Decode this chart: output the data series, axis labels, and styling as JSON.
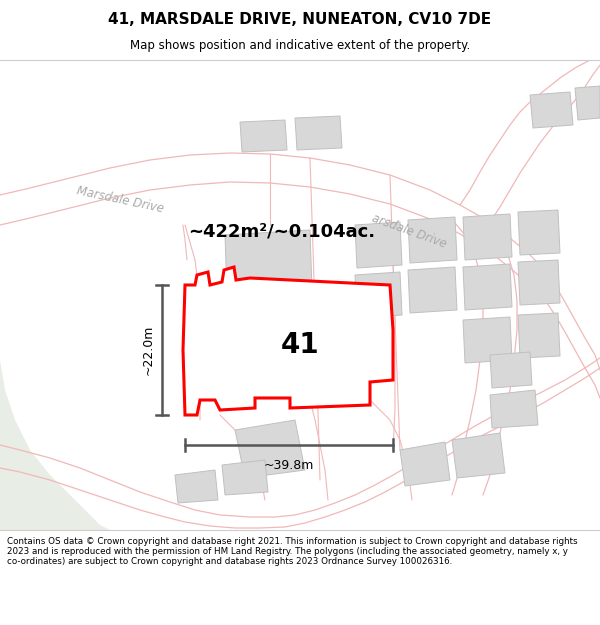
{
  "title": "41, MARSDALE DRIVE, NUNEATON, CV10 7DE",
  "subtitle": "Map shows position and indicative extent of the property.",
  "footer": "Contains OS data © Crown copyright and database right 2021. This information is subject to Crown copyright and database rights 2023 and is reproduced with the permission of HM Land Registry. The polygons (including the associated geometry, namely x, y co-ordinates) are subject to Crown copyright and database rights 2023 Ordnance Survey 100026316.",
  "area_text": "~422m²/~0.104ac.",
  "number_label": "41",
  "dim_width": "~39.8m",
  "dim_height": "~22.0m",
  "map_bg": "#f7f5f2",
  "green_color": "#e8ede5",
  "road_line_color": "#f0b8b8",
  "road_fill_color": "#fae8e8",
  "building_color": "#d8d8d8",
  "building_edge": "#c0c0c0",
  "plot_outline_color": "#ff0000",
  "plot_fill_color": "#ffffff",
  "white_highlight": "#ffffff",
  "dim_color": "#555555",
  "road_label_color": "#aaaaaa",
  "road_label": "Marsdale Drive"
}
